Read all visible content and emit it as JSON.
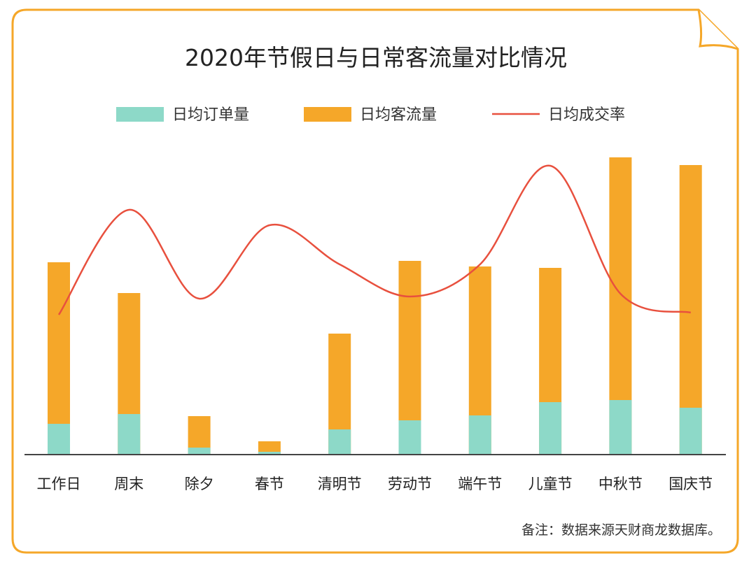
{
  "chart_data": {
    "type": "bar",
    "title": "2020年节假日与日常客流量对比情况",
    "categories": [
      "工作日",
      "周末",
      "除夕",
      "春节",
      "清明节",
      "劳动节",
      "端午节",
      "儿童节",
      "中秋节",
      "国庆节"
    ],
    "series": [
      {
        "name": "日均订单量",
        "kind": "bar",
        "color": "#8dd9c8",
        "values": [
          44,
          58,
          10,
          4,
          36,
          49,
          56,
          75,
          78,
          67
        ]
      },
      {
        "name": "日均客流量",
        "kind": "bar",
        "color": "#f5a729",
        "values": [
          275,
          231,
          55,
          19,
          173,
          277,
          269,
          267,
          425,
          414
        ]
      },
      {
        "name": "日均成交率",
        "kind": "line",
        "color": "#e8503e",
        "values": [
          200,
          350,
          223,
          328,
          272,
          226,
          272,
          413,
          230,
          203
        ]
      }
    ],
    "ylim": [
      0,
      440
    ],
    "grid": false,
    "legend_position": "top",
    "note": "备注：数据来源天财商龙数据库。",
    "frame_color": "#f5a729"
  }
}
